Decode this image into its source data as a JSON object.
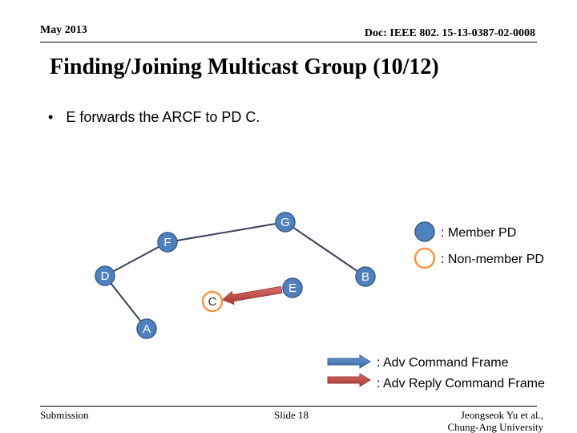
{
  "header": {
    "date": "May 2013",
    "doc": "Doc: IEEE 802. 15-13-0387-02-0008"
  },
  "title": "Finding/Joining Multicast Group (10/12)",
  "bullet": {
    "symbol": "•",
    "text": "E forwards the ARCF to PD C."
  },
  "diagram": {
    "nodes": [
      {
        "id": "G",
        "label": "G",
        "type": "member"
      },
      {
        "id": "F",
        "label": "F",
        "type": "member"
      },
      {
        "id": "D",
        "label": "D",
        "type": "member"
      },
      {
        "id": "B",
        "label": "B",
        "type": "member"
      },
      {
        "id": "E",
        "label": "E",
        "type": "member"
      },
      {
        "id": "C",
        "label": "C",
        "type": "non-member"
      },
      {
        "id": "A",
        "label": "A",
        "type": "member"
      }
    ],
    "links": [
      {
        "from": "G",
        "to": "F"
      },
      {
        "from": "G",
        "to": "B"
      },
      {
        "from": "F",
        "to": "D"
      },
      {
        "from": "D",
        "to": "A"
      }
    ],
    "arrows": [
      {
        "from": "E",
        "to": "C",
        "kind": "adv-reply-command-frame"
      }
    ],
    "legend": {
      "member": ": Member PD",
      "non_member": ": Non-member PD",
      "adv_command": ": Adv Command Frame",
      "adv_reply": ": Adv Reply Command Frame"
    },
    "colors": {
      "member_fill": "#4f81bd",
      "member_stroke": "#385d8a",
      "non_member_stroke": "#f79646",
      "link": "#3b3f58",
      "arrow_blue": "#4f81bd",
      "arrow_red": "#c0504d",
      "label": "#ffffff"
    }
  },
  "footer": {
    "left": "Submission",
    "center": "Slide 18",
    "right_line1": "Jeongseok Yu et al.,",
    "right_line2": "Chung-Ang University"
  }
}
